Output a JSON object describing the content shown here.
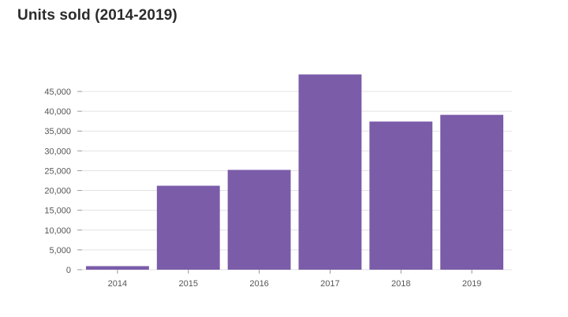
{
  "chart_data": {
    "type": "bar",
    "title": "Units sold (2014-2019)",
    "categories": [
      "2014",
      "2015",
      "2016",
      "2017",
      "2018",
      "2019"
    ],
    "values": [
      900,
      21200,
      25200,
      49300,
      37400,
      39100
    ],
    "ylim": [
      0,
      50000
    ],
    "yticks": [
      0,
      5000,
      10000,
      15000,
      20000,
      25000,
      30000,
      35000,
      40000,
      45000
    ],
    "ytick_labels": [
      "0",
      "5,000",
      "10,000",
      "15,000",
      "20,000",
      "25,000",
      "30,000",
      "35,000",
      "40,000",
      "45,000"
    ],
    "xlabel": "",
    "ylabel": "",
    "grid": true,
    "colors": {
      "bar": "#7b5ca9",
      "grid": "#e3e3e3",
      "text": "#555555"
    }
  }
}
